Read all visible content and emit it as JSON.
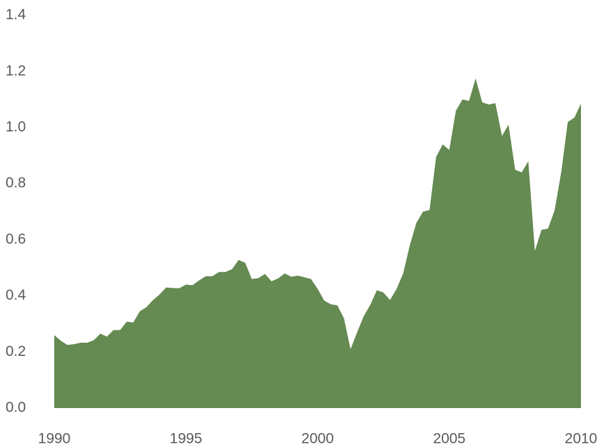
{
  "chart_data": {
    "type": "area",
    "x": [
      1990,
      1990.25,
      1990.5,
      1990.75,
      1991,
      1991.25,
      1991.5,
      1991.75,
      1992,
      1992.25,
      1992.5,
      1992.75,
      1993,
      1993.25,
      1993.5,
      1993.75,
      1994,
      1994.25,
      1994.5,
      1994.75,
      1995,
      1995.25,
      1995.5,
      1995.75,
      1996,
      1996.25,
      1996.5,
      1996.75,
      1997,
      1997.25,
      1997.5,
      1997.75,
      1998,
      1998.25,
      1998.5,
      1998.75,
      1999,
      1999.25,
      1999.5,
      1999.75,
      2000,
      2000.25,
      2000.5,
      2000.75,
      2001,
      2001.25,
      2001.5,
      2001.75,
      2002,
      2002.25,
      2002.5,
      2002.75,
      2003,
      2003.25,
      2003.5,
      2003.75,
      2004,
      2004.25,
      2004.5,
      2004.75,
      2005,
      2005.25,
      2005.5,
      2005.75,
      2006,
      2006.25,
      2006.5,
      2006.75,
      2007,
      2007.25,
      2007.5,
      2007.75,
      2008,
      2008.25,
      2008.5,
      2008.75,
      2009,
      2009.25,
      2009.5,
      2009.75,
      2010
    ],
    "values": [
      0.26,
      0.24,
      0.225,
      0.228,
      0.233,
      0.233,
      0.242,
      0.265,
      0.255,
      0.278,
      0.278,
      0.308,
      0.305,
      0.345,
      0.36,
      0.385,
      0.405,
      0.43,
      0.428,
      0.427,
      0.44,
      0.438,
      0.455,
      0.47,
      0.47,
      0.485,
      0.485,
      0.495,
      0.528,
      0.518,
      0.46,
      0.463,
      0.478,
      0.452,
      0.462,
      0.48,
      0.468,
      0.472,
      0.466,
      0.46,
      0.425,
      0.383,
      0.37,
      0.366,
      0.32,
      0.21,
      0.27,
      0.327,
      0.368,
      0.42,
      0.412,
      0.385,
      0.425,
      0.48,
      0.58,
      0.66,
      0.7,
      0.706,
      0.895,
      0.94,
      0.92,
      1.06,
      1.1,
      1.095,
      1.175,
      1.09,
      1.082,
      1.087,
      0.97,
      1.01,
      0.85,
      0.84,
      0.88,
      0.56,
      0.635,
      0.64,
      0.705,
      0.84,
      1.02,
      1.035,
      1.085
    ],
    "color": "#658a52",
    "xlim": [
      1990,
      2010
    ],
    "xticks": [
      1990,
      1995,
      2000,
      2005,
      2010
    ],
    "ylim": [
      0,
      1.4
    ],
    "yticks": [
      {
        "value": 0,
        "label": "0.0"
      },
      0.2,
      0.4,
      0.6,
      0.8,
      {
        "value": 1,
        "label": "1.0"
      },
      1.2,
      1.4
    ]
  }
}
